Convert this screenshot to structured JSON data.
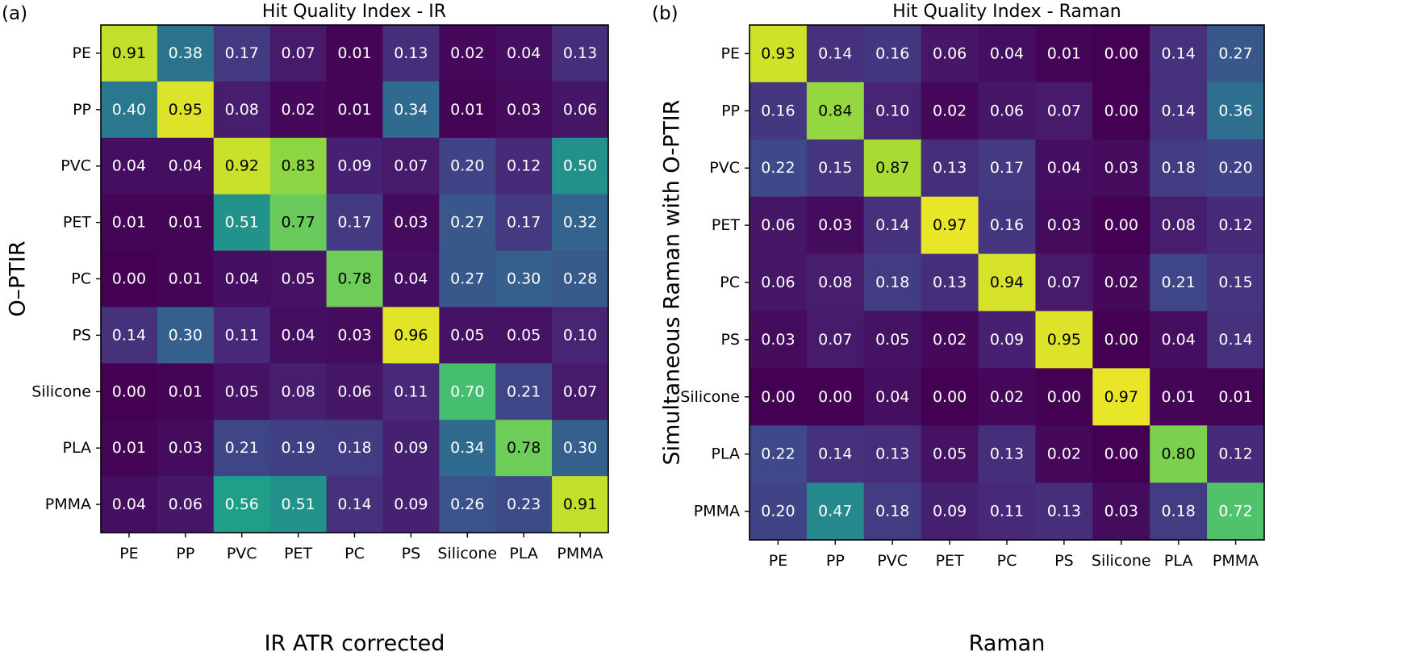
{
  "chart_data": [
    {
      "type": "heatmap",
      "panel_tag": "(a)",
      "title": "Hit Quality Index - IR",
      "xlabel": "IR ATR corrected",
      "ylabel": "O–PTIR",
      "x_categories": [
        "PE",
        "PP",
        "PVC",
        "PET",
        "PC",
        "PS",
        "Silicone",
        "PLA",
        "PMMA"
      ],
      "y_categories": [
        "PE",
        "PP",
        "PVC",
        "PET",
        "PC",
        "PS",
        "Silicone",
        "PLA",
        "PMMA"
      ],
      "value_range": [
        0,
        1
      ],
      "colormap": "viridis",
      "values": [
        [
          0.91,
          0.38,
          0.17,
          0.07,
          0.01,
          0.13,
          0.02,
          0.04,
          0.13
        ],
        [
          0.4,
          0.95,
          0.08,
          0.02,
          0.01,
          0.34,
          0.01,
          0.03,
          0.06
        ],
        [
          0.04,
          0.04,
          0.92,
          0.83,
          0.09,
          0.07,
          0.2,
          0.12,
          0.5
        ],
        [
          0.01,
          0.01,
          0.51,
          0.77,
          0.17,
          0.03,
          0.27,
          0.17,
          0.32
        ],
        [
          0.0,
          0.01,
          0.04,
          0.05,
          0.78,
          0.04,
          0.27,
          0.3,
          0.28
        ],
        [
          0.14,
          0.3,
          0.11,
          0.04,
          0.03,
          0.96,
          0.05,
          0.05,
          0.1
        ],
        [
          0.0,
          0.01,
          0.05,
          0.08,
          0.06,
          0.11,
          0.7,
          0.21,
          0.07
        ],
        [
          0.01,
          0.03,
          0.21,
          0.19,
          0.18,
          0.09,
          0.34,
          0.78,
          0.3
        ],
        [
          0.04,
          0.06,
          0.56,
          0.51,
          0.14,
          0.09,
          0.26,
          0.23,
          0.91
        ]
      ]
    },
    {
      "type": "heatmap",
      "panel_tag": "(b)",
      "title": "Hit Quality Index - Raman",
      "xlabel": "Raman",
      "ylabel": "Simultaneous Raman with O-PTIR",
      "x_categories": [
        "PE",
        "PP",
        "PVC",
        "PET",
        "PC",
        "PS",
        "Silicone",
        "PLA",
        "PMMA"
      ],
      "y_categories": [
        "PE",
        "PP",
        "PVC",
        "PET",
        "PC",
        "PS",
        "Silicone",
        "PLA",
        "PMMA"
      ],
      "value_range": [
        0,
        1
      ],
      "colormap": "viridis",
      "values": [
        [
          0.93,
          0.14,
          0.16,
          0.06,
          0.04,
          0.01,
          0.0,
          0.14,
          0.27
        ],
        [
          0.16,
          0.84,
          0.1,
          0.02,
          0.06,
          0.07,
          0.0,
          0.14,
          0.36
        ],
        [
          0.22,
          0.15,
          0.87,
          0.13,
          0.17,
          0.04,
          0.03,
          0.18,
          0.2
        ],
        [
          0.06,
          0.03,
          0.14,
          0.97,
          0.16,
          0.03,
          0.0,
          0.08,
          0.12
        ],
        [
          0.06,
          0.08,
          0.18,
          0.13,
          0.94,
          0.07,
          0.02,
          0.21,
          0.15
        ],
        [
          0.03,
          0.07,
          0.05,
          0.02,
          0.09,
          0.95,
          0.0,
          0.04,
          0.14
        ],
        [
          0.0,
          0.0,
          0.04,
          0.0,
          0.02,
          0.0,
          0.97,
          0.01,
          0.01
        ],
        [
          0.22,
          0.14,
          0.13,
          0.05,
          0.13,
          0.02,
          0.0,
          0.8,
          0.12
        ],
        [
          0.2,
          0.47,
          0.18,
          0.09,
          0.11,
          0.13,
          0.03,
          0.18,
          0.72
        ]
      ]
    }
  ]
}
